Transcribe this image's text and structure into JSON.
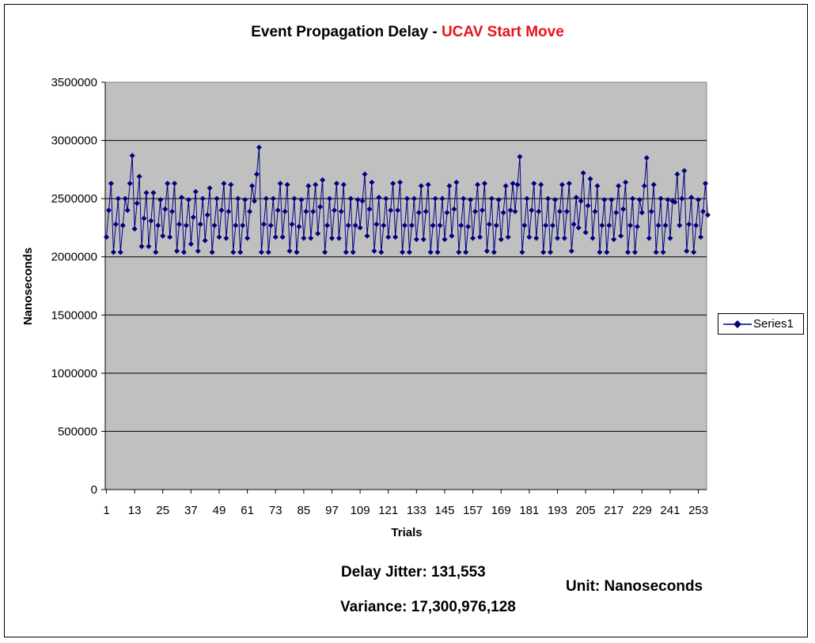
{
  "chart_data": {
    "type": "line",
    "title_prefix": "Event Propagation Delay - ",
    "title_highlight": "UCAV Start Move",
    "title_highlight_color": "#e8141b",
    "xlabel": "Trials",
    "ylabel": "Nanoseconds",
    "ylim": [
      0,
      3500000
    ],
    "yticks": [
      0,
      500000,
      1000000,
      1500000,
      2000000,
      2500000,
      3000000,
      3500000
    ],
    "ytick_labels": [
      "0",
      "500000",
      "1000000",
      "1500000",
      "2000000",
      "2500000",
      "3000000",
      "3500000"
    ],
    "xticks": [
      1,
      13,
      25,
      37,
      49,
      61,
      73,
      85,
      97,
      109,
      121,
      133,
      145,
      157,
      169,
      181,
      193,
      205,
      217,
      229,
      241,
      253
    ],
    "x_count": 256,
    "plot_background": "#c0c0c0",
    "gridlines": true,
    "legend_position": "right",
    "series_color": "#000080",
    "series": [
      {
        "name": "Series1",
        "values": [
          2170000,
          2400000,
          2630000,
          2040000,
          2280000,
          2500000,
          2040000,
          2270000,
          2500000,
          2400000,
          2630000,
          2870000,
          2240000,
          2460000,
          2690000,
          2090000,
          2330000,
          2550000,
          2090000,
          2310000,
          2550000,
          2040000,
          2270000,
          2490000,
          2180000,
          2410000,
          2630000,
          2170000,
          2390000,
          2630000,
          2050000,
          2280000,
          2510000,
          2040000,
          2270000,
          2490000,
          2110000,
          2340000,
          2560000,
          2050000,
          2280000,
          2500000,
          2140000,
          2360000,
          2590000,
          2040000,
          2270000,
          2500000,
          2170000,
          2400000,
          2630000,
          2160000,
          2390000,
          2620000,
          2040000,
          2270000,
          2500000,
          2040000,
          2270000,
          2490000,
          2160000,
          2390000,
          2610000,
          2480000,
          2710000,
          2940000,
          2040000,
          2280000,
          2500000,
          2040000,
          2270000,
          2500000,
          2170000,
          2400000,
          2630000,
          2170000,
          2390000,
          2620000,
          2050000,
          2280000,
          2500000,
          2040000,
          2260000,
          2490000,
          2160000,
          2390000,
          2610000,
          2160000,
          2390000,
          2620000,
          2200000,
          2430000,
          2660000,
          2040000,
          2270000,
          2500000,
          2160000,
          2400000,
          2630000,
          2160000,
          2390000,
          2620000,
          2040000,
          2270000,
          2500000,
          2040000,
          2270000,
          2490000,
          2250000,
          2480000,
          2710000,
          2180000,
          2410000,
          2640000,
          2050000,
          2280000,
          2510000,
          2040000,
          2270000,
          2500000,
          2170000,
          2400000,
          2630000,
          2170000,
          2400000,
          2640000,
          2040000,
          2270000,
          2500000,
          2040000,
          2270000,
          2500000,
          2150000,
          2380000,
          2610000,
          2150000,
          2390000,
          2620000,
          2040000,
          2270000,
          2500000,
          2040000,
          2270000,
          2500000,
          2150000,
          2380000,
          2610000,
          2180000,
          2410000,
          2640000,
          2040000,
          2270000,
          2500000,
          2040000,
          2260000,
          2490000,
          2160000,
          2390000,
          2620000,
          2170000,
          2400000,
          2630000,
          2050000,
          2280000,
          2500000,
          2040000,
          2270000,
          2490000,
          2150000,
          2380000,
          2610000,
          2170000,
          2400000,
          2630000,
          2390000,
          2620000,
          2860000,
          2040000,
          2270000,
          2500000,
          2170000,
          2400000,
          2630000,
          2160000,
          2390000,
          2620000,
          2040000,
          2270000,
          2500000,
          2040000,
          2270000,
          2490000,
          2160000,
          2390000,
          2620000,
          2160000,
          2390000,
          2630000,
          2050000,
          2280000,
          2510000,
          2250000,
          2480000,
          2720000,
          2210000,
          2440000,
          2670000,
          2160000,
          2390000,
          2610000,
          2040000,
          2270000,
          2490000,
          2040000,
          2270000,
          2490000,
          2150000,
          2380000,
          2610000,
          2180000,
          2410000,
          2640000,
          2040000,
          2270000,
          2500000,
          2040000,
          2260000,
          2490000,
          2380000,
          2610000,
          2850000,
          2160000,
          2390000,
          2620000,
          2040000,
          2270000,
          2500000,
          2040000,
          2270000,
          2490000,
          2160000,
          2480000,
          2470000,
          2710000,
          2270000,
          2500000,
          2740000,
          2050000,
          2280000,
          2510000,
          2040000,
          2270000,
          2490000,
          2170000,
          2390000,
          2630000,
          2360000
        ]
      }
    ]
  },
  "notes": {
    "jitter": "Delay Jitter: 131,553",
    "variance": "Variance: 17,300,976,128",
    "unit": "Unit: Nanoseconds"
  }
}
